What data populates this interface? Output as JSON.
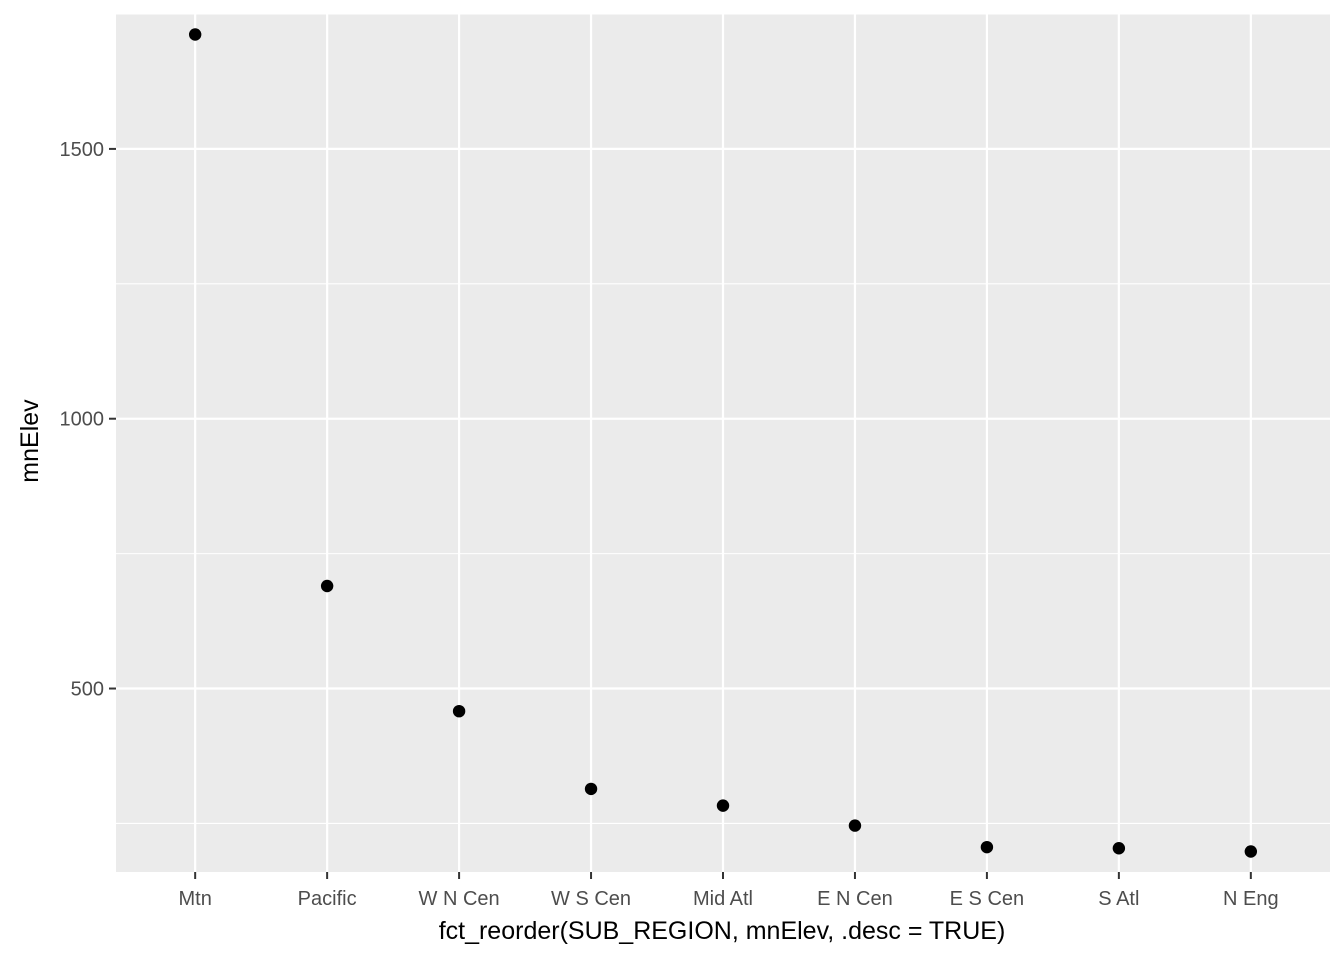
{
  "chart_data": {
    "type": "scatter",
    "title": "",
    "xlabel": "fct_reorder(SUB_REGION, mnElev, .desc = TRUE)",
    "ylabel": "mnElev",
    "categories": [
      "Mtn",
      "Pacific",
      "W N Cen",
      "W S Cen",
      "Mid Atl",
      "E N Cen",
      "E S Cen",
      "S Atl",
      "N Eng"
    ],
    "values": [
      1712,
      690,
      458,
      314,
      283,
      246,
      206,
      204,
      198
    ],
    "ylim": [
      160,
      1750
    ],
    "y_ticks": [
      500,
      1000,
      1500
    ],
    "y_tick_labels": [
      "500",
      "1000",
      "1500"
    ],
    "grid": true,
    "legend": "none",
    "colors": {
      "panel_background": "#ebebeb",
      "grid_major": "#ffffff",
      "point": "#000000"
    }
  }
}
